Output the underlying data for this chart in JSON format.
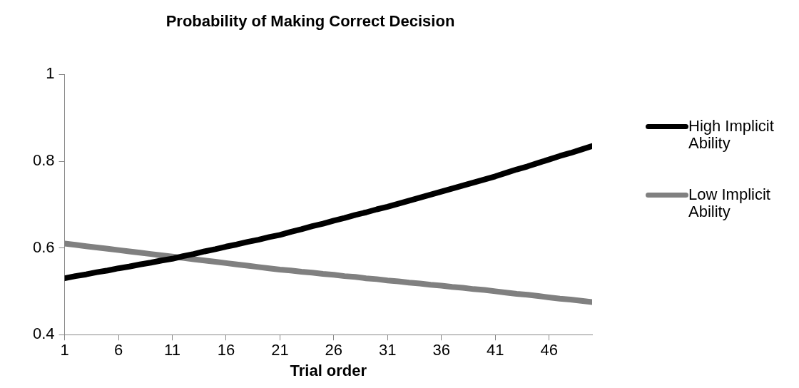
{
  "chart_data": {
    "type": "line",
    "title": "Probability of Making Correct Decision",
    "xlabel": "Trial order",
    "x": [
      1,
      2,
      3,
      4,
      5,
      6,
      7,
      8,
      9,
      10,
      11,
      12,
      13,
      14,
      15,
      16,
      17,
      18,
      19,
      20,
      21,
      22,
      23,
      24,
      25,
      26,
      27,
      28,
      29,
      30,
      31,
      32,
      33,
      34,
      35,
      36,
      37,
      38,
      39,
      40,
      41,
      42,
      43,
      44,
      45,
      46,
      47,
      48,
      49,
      50
    ],
    "xlim": [
      1,
      50
    ],
    "xticks": [
      1,
      6,
      11,
      16,
      21,
      26,
      31,
      36,
      41,
      46
    ],
    "series": [
      {
        "name": "High Implicit Ability",
        "color": "#000000",
        "values": [
          0.53,
          0.535,
          0.539,
          0.544,
          0.548,
          0.553,
          0.557,
          0.562,
          0.566,
          0.571,
          0.575,
          0.581,
          0.586,
          0.592,
          0.597,
          0.603,
          0.608,
          0.614,
          0.619,
          0.625,
          0.63,
          0.637,
          0.643,
          0.65,
          0.656,
          0.663,
          0.669,
          0.676,
          0.682,
          0.689,
          0.695,
          0.702,
          0.709,
          0.716,
          0.723,
          0.73,
          0.737,
          0.744,
          0.751,
          0.758,
          0.765,
          0.773,
          0.781,
          0.788,
          0.796,
          0.804,
          0.812,
          0.819,
          0.827,
          0.835
        ]
      },
      {
        "name": "Low Implicit Ability",
        "color": "#808080",
        "values": [
          0.61,
          0.607,
          0.604,
          0.601,
          0.598,
          0.595,
          0.592,
          0.589,
          0.586,
          0.583,
          0.58,
          0.577,
          0.574,
          0.571,
          0.568,
          0.565,
          0.562,
          0.559,
          0.556,
          0.553,
          0.55,
          0.548,
          0.545,
          0.543,
          0.54,
          0.538,
          0.535,
          0.533,
          0.53,
          0.528,
          0.525,
          0.523,
          0.52,
          0.518,
          0.515,
          0.513,
          0.51,
          0.508,
          0.505,
          0.503,
          0.5,
          0.497,
          0.494,
          0.492,
          0.489,
          0.486,
          0.483,
          0.481,
          0.478,
          0.475
        ]
      }
    ],
    "ylim": [
      0.4,
      1
    ],
    "yticks": [
      0.4,
      0.6,
      0.8,
      1
    ],
    "grid": false,
    "legend": "right",
    "marker": "none",
    "line_style": "solid"
  }
}
